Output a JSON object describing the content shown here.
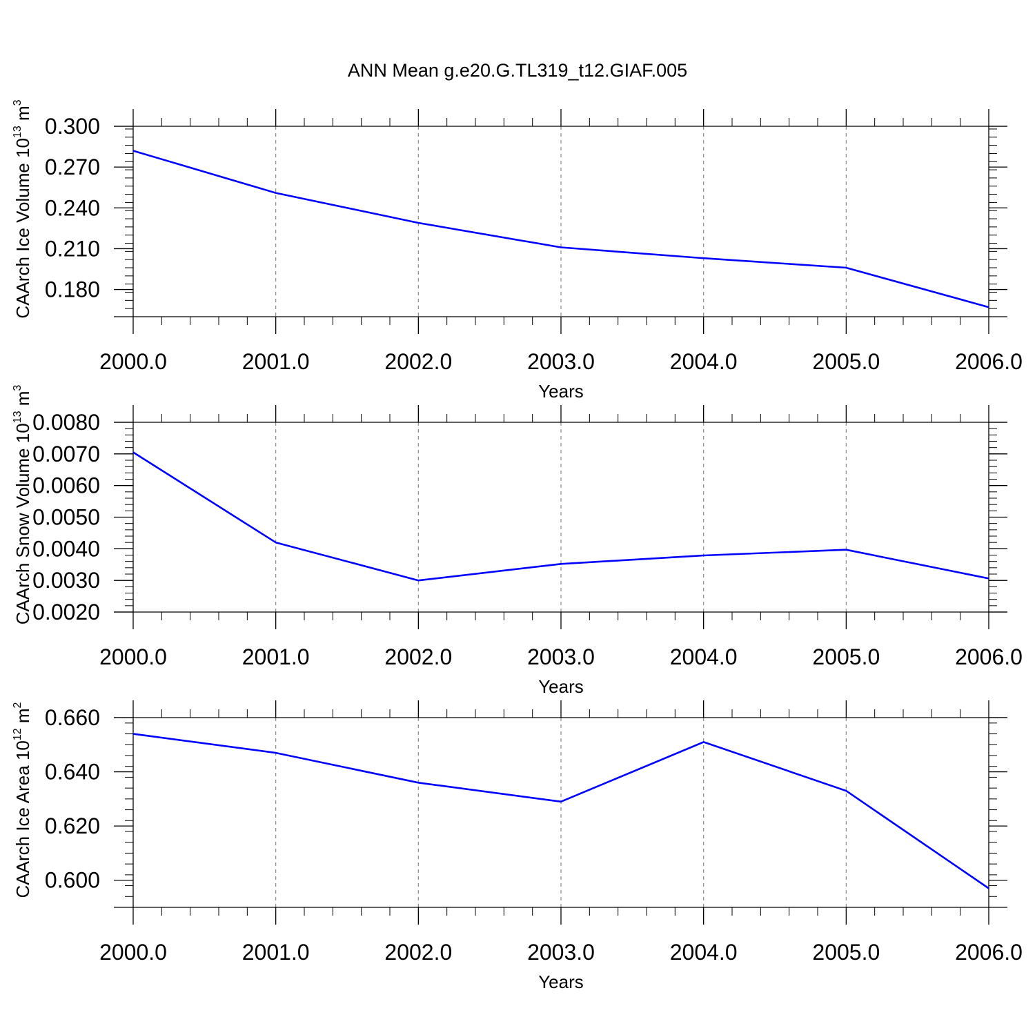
{
  "figure": {
    "title": "ANN Mean g.e20.G.TL319_t12.GIAF.005"
  },
  "chart_data": [
    {
      "type": "line",
      "xlabel": "Years",
      "ylabel": {
        "main": "CAArch Ice Volume 10",
        "exp": "13",
        "unit": " m",
        "unit_exp": "3"
      },
      "x": [
        2000,
        2001,
        2002,
        2003,
        2004,
        2005,
        2006
      ],
      "x_tick_labels": [
        "2000.0",
        "2001.0",
        "2002.0",
        "2003.0",
        "2004.0",
        "2005.0",
        "2006.0"
      ],
      "xlim": [
        2000,
        2006.12
      ],
      "y_ticks": [
        0.3,
        0.27,
        0.24,
        0.21,
        0.18
      ],
      "y_tick_labels": [
        "0.300",
        "0.270",
        "0.240",
        "0.210",
        "0.180"
      ],
      "y_minor_step": 0.006,
      "ylim": [
        0.16,
        0.3
      ],
      "series": [
        {
          "values": [
            0.282,
            0.251,
            0.229,
            0.211,
            0.203,
            0.196,
            0.167
          ],
          "color": "#0000ff"
        }
      ]
    },
    {
      "type": "line",
      "xlabel": "Years",
      "ylabel": {
        "main": "CAArch Snow Volume 10",
        "exp": "13",
        "unit": " m",
        "unit_exp": "3"
      },
      "x": [
        2000,
        2001,
        2002,
        2003,
        2004,
        2005,
        2006
      ],
      "x_tick_labels": [
        "2000.0",
        "2001.0",
        "2002.0",
        "2003.0",
        "2004.0",
        "2005.0",
        "2006.0"
      ],
      "xlim": [
        2000,
        2006.12
      ],
      "y_ticks": [
        0.008,
        0.007,
        0.006,
        0.005,
        0.004,
        0.003,
        0.002
      ],
      "y_tick_labels": [
        "0.0080",
        "0.0070",
        "0.0060",
        "0.0050",
        "0.0040",
        "0.0030",
        "0.0020"
      ],
      "y_minor_step": 0.0002,
      "ylim": [
        0.002,
        0.008
      ],
      "series": [
        {
          "values": [
            0.00705,
            0.0042,
            0.003,
            0.00352,
            0.00379,
            0.00397,
            0.00306
          ],
          "color": "#0000ff"
        }
      ]
    },
    {
      "type": "line",
      "xlabel": "Years",
      "ylabel": {
        "main": "CAArch Ice Area 10",
        "exp": "12",
        "unit": " m",
        "unit_exp": "2"
      },
      "x": [
        2000,
        2001,
        2002,
        2003,
        2004,
        2005,
        2006
      ],
      "x_tick_labels": [
        "2000.0",
        "2001.0",
        "2002.0",
        "2003.0",
        "2004.0",
        "2005.0",
        "2006.0"
      ],
      "xlim": [
        2000,
        2006.12
      ],
      "y_ticks": [
        0.66,
        0.64,
        0.62,
        0.6
      ],
      "y_tick_labels": [
        "0.660",
        "0.640",
        "0.620",
        "0.600"
      ],
      "y_minor_step": 0.004,
      "ylim": [
        0.59,
        0.66
      ],
      "series": [
        {
          "values": [
            0.654,
            0.647,
            0.636,
            0.629,
            0.651,
            0.633,
            0.597
          ],
          "color": "#0000ff"
        }
      ]
    }
  ]
}
